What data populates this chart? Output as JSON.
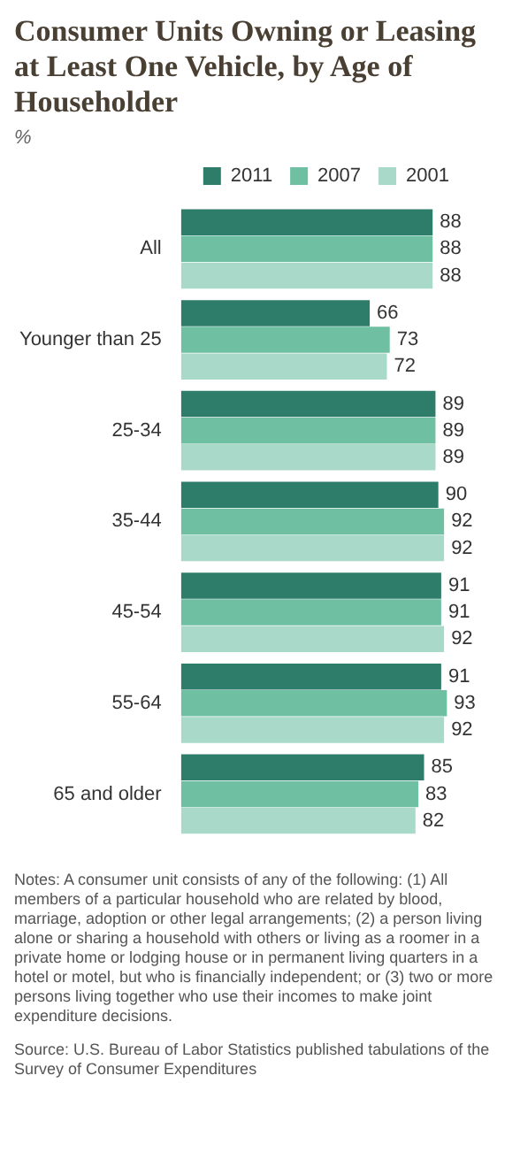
{
  "chart_data": {
    "type": "bar",
    "orientation": "horizontal",
    "title": "Consumer Units Owning or Leasing at Least One Vehicle, by Age of Householder",
    "subtitle": "%",
    "categories": [
      "All",
      "Younger than 25",
      "25-34",
      "35-44",
      "45-54",
      "55-64",
      "65 and older"
    ],
    "series": [
      {
        "name": "2011",
        "color": "#2e7d6b",
        "values": [
          88,
          66,
          89,
          90,
          91,
          91,
          85
        ]
      },
      {
        "name": "2007",
        "color": "#6fbfa3",
        "values": [
          88,
          73,
          89,
          92,
          91,
          93,
          83
        ]
      },
      {
        "name": "2001",
        "color": "#a9d9c8",
        "values": [
          88,
          72,
          89,
          92,
          92,
          92,
          82
        ]
      }
    ],
    "data_labels": true,
    "legend": "top right",
    "tick_labels": "y",
    "annotations": [
      "Notes: A consumer unit consists of any of the following: (1) All members of a particular household who are related by blood, marriage, adoption or other legal arrangements; (2) a person living alone or sharing a household with others or living as a roomer in a private home or lodging house or in permanent living quarters in a hotel or motel, but who is financially independent; or (3) two or more persons living together who use their incomes to make joint expenditure decisions.",
      "Source: U.S. Bureau of Labor Statistics published tabulations of the Survey of Consumer Expenditures"
    ]
  }
}
